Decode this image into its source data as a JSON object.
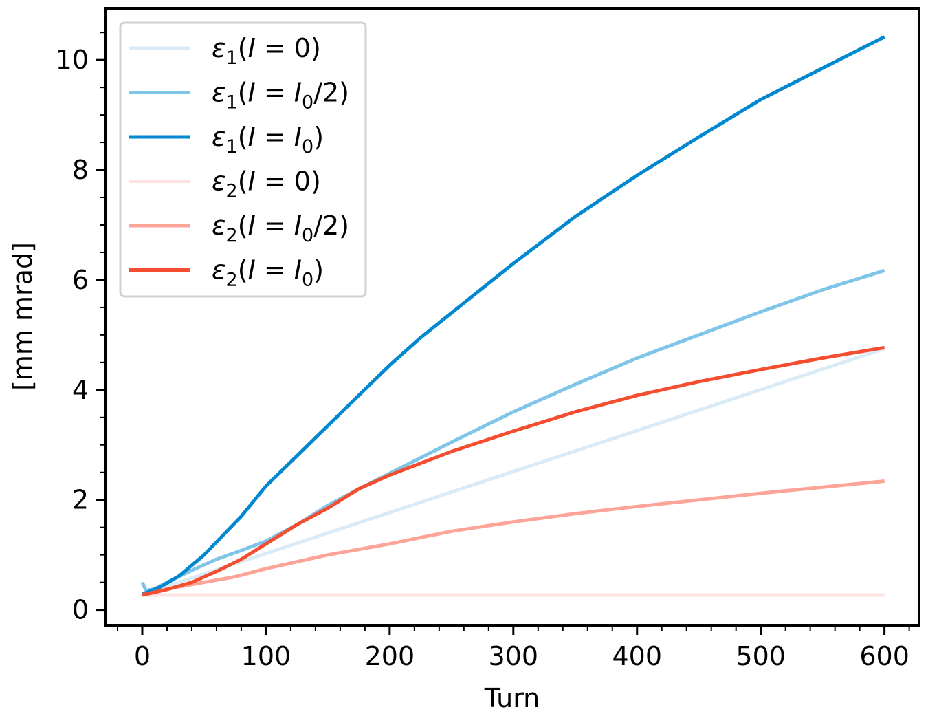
{
  "chart_data": {
    "type": "line",
    "title": "",
    "xlabel": "Turn",
    "ylabel": "[mm mrad]",
    "xlim": [
      -30,
      628
    ],
    "ylim": [
      -0.28,
      10.94
    ],
    "xticks": [
      0,
      100,
      200,
      300,
      400,
      500,
      600
    ],
    "xtick_labels": [
      "0",
      "100",
      "200",
      "300",
      "400",
      "500",
      "600"
    ],
    "yticks": [
      0,
      2,
      4,
      6,
      8,
      10
    ],
    "ytick_labels": [
      "0",
      "2",
      "4",
      "6",
      "8",
      "10"
    ],
    "x_minor_step": 20,
    "y_minor_step": 0.5,
    "grid": false,
    "legend_position": "top-left",
    "series": [
      {
        "name": "ε1(I = 0)",
        "sym": "ε",
        "sub": "1",
        "arg": "0",
        "argsub": "",
        "color": "#d8ebf6",
        "x": [
          0,
          600
        ],
        "y": [
          0.28,
          4.75
        ]
      },
      {
        "name": "ε1(I = I0/2)",
        "sym": "ε",
        "sub": "1",
        "arg": "I",
        "argsub": "0",
        "argtail": "/2",
        "color": "#7fc5e8",
        "x": [
          0,
          3,
          10,
          20,
          40,
          60,
          80,
          100,
          125,
          150,
          175,
          200,
          250,
          300,
          350,
          400,
          450,
          500,
          550,
          600
        ],
        "y": [
          0.5,
          0.35,
          0.38,
          0.5,
          0.72,
          0.92,
          1.08,
          1.25,
          1.55,
          1.9,
          2.2,
          2.48,
          3.05,
          3.6,
          4.1,
          4.58,
          5.0,
          5.42,
          5.82,
          6.17
        ]
      },
      {
        "name": "ε1(I = I0)",
        "sym": "ε",
        "sub": "1",
        "arg": "I",
        "argsub": "0",
        "argtail": "",
        "color": "#0288d1",
        "x": [
          0,
          15,
          30,
          50,
          80,
          100,
          125,
          150,
          175,
          200,
          225,
          250,
          300,
          350,
          400,
          450,
          500,
          550,
          600
        ],
        "y": [
          0.28,
          0.42,
          0.62,
          1.0,
          1.7,
          2.25,
          2.8,
          3.35,
          3.9,
          4.45,
          4.95,
          5.4,
          6.3,
          7.15,
          7.9,
          8.6,
          9.28,
          9.85,
          10.42
        ]
      },
      {
        "name": "ε2(I = 0)",
        "sym": "ε",
        "sub": "2",
        "arg": "0",
        "argsub": "",
        "color": "#fde2df",
        "x": [
          0,
          600
        ],
        "y": [
          0.27,
          0.27
        ]
      },
      {
        "name": "ε2(I = I0/2)",
        "sym": "ε",
        "sub": "2",
        "arg": "I",
        "argsub": "0",
        "argtail": "/2",
        "color": "#fca497",
        "x": [
          0,
          25,
          50,
          75,
          100,
          150,
          200,
          250,
          300,
          350,
          400,
          450,
          500,
          550,
          600
        ],
        "y": [
          0.27,
          0.4,
          0.5,
          0.6,
          0.75,
          1.0,
          1.2,
          1.43,
          1.6,
          1.75,
          1.88,
          2.0,
          2.12,
          2.23,
          2.34
        ]
      },
      {
        "name": "ε2(I = I0)",
        "sym": "ε",
        "sub": "2",
        "arg": "I",
        "argsub": "0",
        "argtail": "",
        "color": "#f54d2f",
        "x": [
          0,
          20,
          40,
          60,
          80,
          100,
          125,
          150,
          175,
          200,
          250,
          300,
          350,
          400,
          450,
          500,
          550,
          600
        ],
        "y": [
          0.27,
          0.37,
          0.5,
          0.7,
          0.92,
          1.2,
          1.55,
          1.85,
          2.2,
          2.45,
          2.88,
          3.25,
          3.6,
          3.9,
          4.15,
          4.37,
          4.58,
          4.77
        ]
      }
    ]
  }
}
